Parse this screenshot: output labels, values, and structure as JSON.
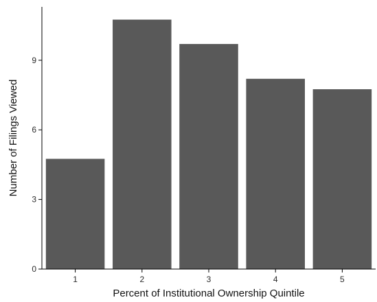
{
  "chart_data": {
    "type": "bar",
    "categories": [
      "1",
      "2",
      "3",
      "4",
      "5"
    ],
    "values": [
      4.75,
      10.75,
      9.7,
      8.2,
      7.75
    ],
    "xlabel": "Percent of Institutional Ownership Quintile",
    "ylabel": "Number of Filings Viewed",
    "ylim": [
      0,
      11.3
    ],
    "yticks": [
      0,
      3,
      6,
      9
    ],
    "grid": false,
    "legend": "none",
    "bar_color": "#595959",
    "axis_color": "#000000",
    "text_color": "#2b2b2b"
  }
}
